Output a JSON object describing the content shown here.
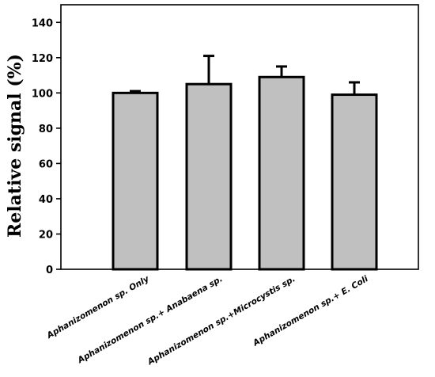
{
  "chart_data": {
    "type": "bar",
    "title": "",
    "xlabel": "",
    "ylabel": "Relative signal (%)",
    "ylim": [
      0,
      150
    ],
    "yticks": [
      0,
      20,
      40,
      60,
      80,
      100,
      120,
      140
    ],
    "grid": false,
    "legend": "none",
    "categories": [
      "Aphanizomenon sp. Only",
      "Aphanizomenon sp.+ Anabaena sp.",
      "Aphanizomenon sp.+Microcystis sp.",
      "Aphanizomenon sp.+ E. Coli"
    ],
    "values": [
      100,
      105,
      109,
      99
    ],
    "errors": [
      1,
      16,
      6,
      7
    ],
    "bar_color": "#c0c0c0",
    "edge_color": "#000000"
  }
}
